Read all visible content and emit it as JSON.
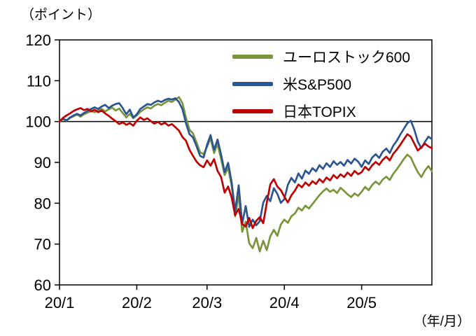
{
  "labels": {
    "unit": "（ポイント）",
    "x_unit": "（年/月）"
  },
  "colors": {
    "eurostoxx600": "#7a943b",
    "sp500": "#2b5592",
    "topix": "#c00000",
    "axis": "#000000",
    "reference_line": "#000000"
  },
  "legend": {
    "items": [
      {
        "series": "eurostoxx600",
        "label": "ユーロストック600",
        "color": "#7a943b"
      },
      {
        "series": "sp500",
        "label": "米S&P500",
        "color": "#2b5592"
      },
      {
        "series": "topix",
        "label": "日本TOPIX",
        "color": "#c00000"
      }
    ]
  },
  "axes": {
    "y_tick_labels": [
      "120",
      "110",
      "100",
      "90",
      "80",
      "70",
      "60"
    ],
    "x_tick_labels": [
      "20/1",
      "20/2",
      "20/3",
      "20/4",
      "20/5"
    ]
  },
  "chart_data": {
    "type": "line",
    "title": "",
    "ylabel": "（ポイント）",
    "xlabel": "（年/月）",
    "ylim": [
      60,
      120
    ],
    "y_tick_step": 10,
    "reference_line_y": 100,
    "grid": false,
    "legend_position": "top-center-inside",
    "x_description": "Trading-day index, daily closes Jan–May 2020, indexed to 100 at start of 2020/1",
    "x_range": [
      0,
      106
    ],
    "x_tick_positions": [
      0,
      22,
      42,
      64,
      86
    ],
    "x_tick_labels": [
      "20/1",
      "20/2",
      "20/3",
      "20/4",
      "20/5"
    ],
    "series": [
      {
        "key": "eurostoxx600",
        "name": "ユーロストック600",
        "color": "#7a943b",
        "values": [
          100.0,
          100.6,
          100.2,
          100.9,
          101.3,
          101.7,
          101.2,
          101.8,
          102.2,
          102.6,
          102.3,
          102.8,
          103.1,
          102.5,
          103.0,
          103.4,
          102.7,
          103.2,
          102.1,
          101.0,
          101.9,
          100.8,
          101.5,
          102.4,
          103.0,
          103.5,
          103.2,
          103.9,
          104.3,
          104.0,
          104.6,
          105.1,
          104.8,
          105.4,
          106.0,
          104.5,
          100.9,
          98.0,
          97.1,
          94.9,
          92.5,
          92.0,
          93.8,
          95.9,
          92.3,
          94.5,
          90.8,
          86.9,
          88.7,
          84.3,
          76.8,
          82.0,
          73.0,
          75.5,
          70.2,
          69.0,
          71.5,
          68.2,
          70.8,
          68.5,
          71.9,
          73.5,
          72.0,
          74.8,
          76.0,
          75.2,
          76.8,
          77.5,
          78.9,
          78.2,
          79.4,
          78.7,
          79.8,
          80.9,
          82.0,
          82.9,
          83.6,
          82.8,
          83.3,
          82.5,
          83.8,
          83.0,
          82.2,
          81.5,
          82.4,
          81.8,
          82.8,
          84.0,
          83.2,
          84.5,
          85.3,
          84.6,
          85.8,
          86.5,
          85.7,
          87.2,
          88.3,
          89.5,
          90.8,
          91.9,
          91.2,
          89.3,
          87.6,
          86.4,
          88.0,
          89.1,
          87.8
        ]
      },
      {
        "key": "sp500",
        "name": "米S&P500",
        "color": "#2b5592",
        "values": [
          100.0,
          100.7,
          100.3,
          101.0,
          101.5,
          101.9,
          101.5,
          102.1,
          102.6,
          103.1,
          103.5,
          103.1,
          103.7,
          104.1,
          103.3,
          103.9,
          104.3,
          104.5,
          103.3,
          101.8,
          102.9,
          101.0,
          101.8,
          103.1,
          103.7,
          104.3,
          104.1,
          104.7,
          105.1,
          104.8,
          105.3,
          105.6,
          105.4,
          105.7,
          104.8,
          103.0,
          99.6,
          96.9,
          96.1,
          94.0,
          91.6,
          91.2,
          94.3,
          96.7,
          93.1,
          95.6,
          91.9,
          87.6,
          89.9,
          85.2,
          78.0,
          84.4,
          75.0,
          79.3,
          74.2,
          76.0,
          74.6,
          75.6,
          80.2,
          81.8,
          80.5,
          83.7,
          82.3,
          80.1,
          81.0,
          84.5,
          86.2,
          85.1,
          87.3,
          86.0,
          88.0,
          87.2,
          88.6,
          87.8,
          89.3,
          88.4,
          89.8,
          88.9,
          90.3,
          89.4,
          90.1,
          89.2,
          90.6,
          89.7,
          90.9,
          90.2,
          88.9,
          90.5,
          89.6,
          91.2,
          92.0,
          91.1,
          92.6,
          93.4,
          92.3,
          94.1,
          95.3,
          96.8,
          98.2,
          99.6,
          100.2,
          98.0,
          95.1,
          93.5,
          95.0,
          96.3,
          95.7
        ]
      },
      {
        "key": "topix",
        "name": "日本TOPIX",
        "color": "#c00000",
        "values": [
          100.0,
          100.9,
          101.5,
          102.0,
          102.6,
          103.0,
          103.3,
          102.8,
          103.1,
          102.5,
          102.9,
          102.3,
          102.7,
          102.0,
          101.4,
          100.7,
          100.1,
          99.4,
          99.8,
          99.2,
          99.6,
          99.0,
          100.2,
          101.0,
          100.4,
          100.8,
          100.1,
          99.5,
          99.9,
          99.3,
          99.7,
          99.0,
          99.4,
          98.6,
          97.8,
          96.2,
          95.3,
          93.1,
          91.6,
          90.2,
          89.3,
          88.8,
          90.5,
          89.2,
          90.8,
          87.9,
          86.4,
          82.6,
          84.1,
          81.4,
          77.1,
          78.6,
          74.9,
          74.3,
          76.4,
          73.9,
          75.7,
          76.6,
          75.1,
          80.1,
          84.6,
          85.9,
          84.1,
          83.2,
          81.6,
          80.2,
          81.9,
          83.1,
          84.6,
          83.9,
          85.1,
          84.3,
          85.4,
          84.7,
          85.9,
          85.1,
          86.3,
          85.6,
          86.9,
          86.1,
          87.1,
          86.4,
          87.5,
          86.7,
          87.9,
          87.1,
          87.6,
          88.9,
          88.1,
          89.3,
          90.1,
          89.4,
          90.6,
          91.4,
          90.5,
          92.1,
          93.1,
          94.3,
          95.6,
          96.9,
          96.3,
          94.6,
          92.9,
          93.7,
          94.6,
          93.9,
          93.5
        ]
      }
    ]
  }
}
